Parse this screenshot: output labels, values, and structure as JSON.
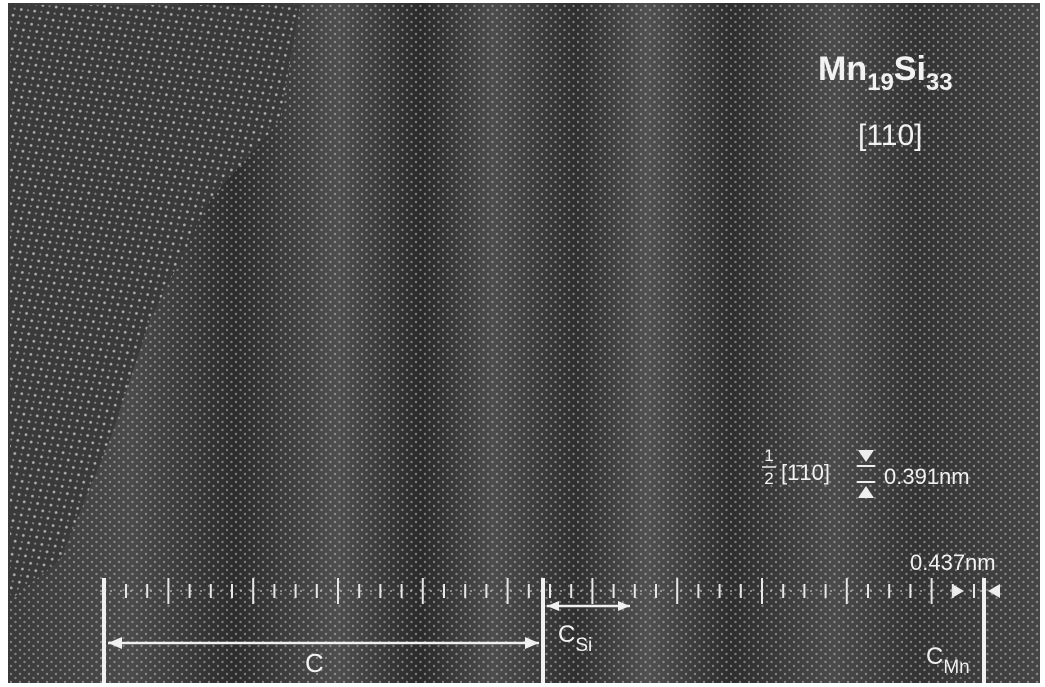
{
  "formula": {
    "element1": "Mn",
    "count1": "19",
    "element2": "Si",
    "count2": "33"
  },
  "zone_axis": "[110]",
  "vector": {
    "numerator": "1",
    "denominator": "2",
    "direction": "[1̄10]"
  },
  "spacing_label": "0.391nm",
  "period_label": "0.437nm",
  "labels": {
    "c": "C",
    "c_si": {
      "base": "C",
      "sub": "Si"
    },
    "c_mn": {
      "base": "C",
      "sub": "Mn"
    }
  }
}
